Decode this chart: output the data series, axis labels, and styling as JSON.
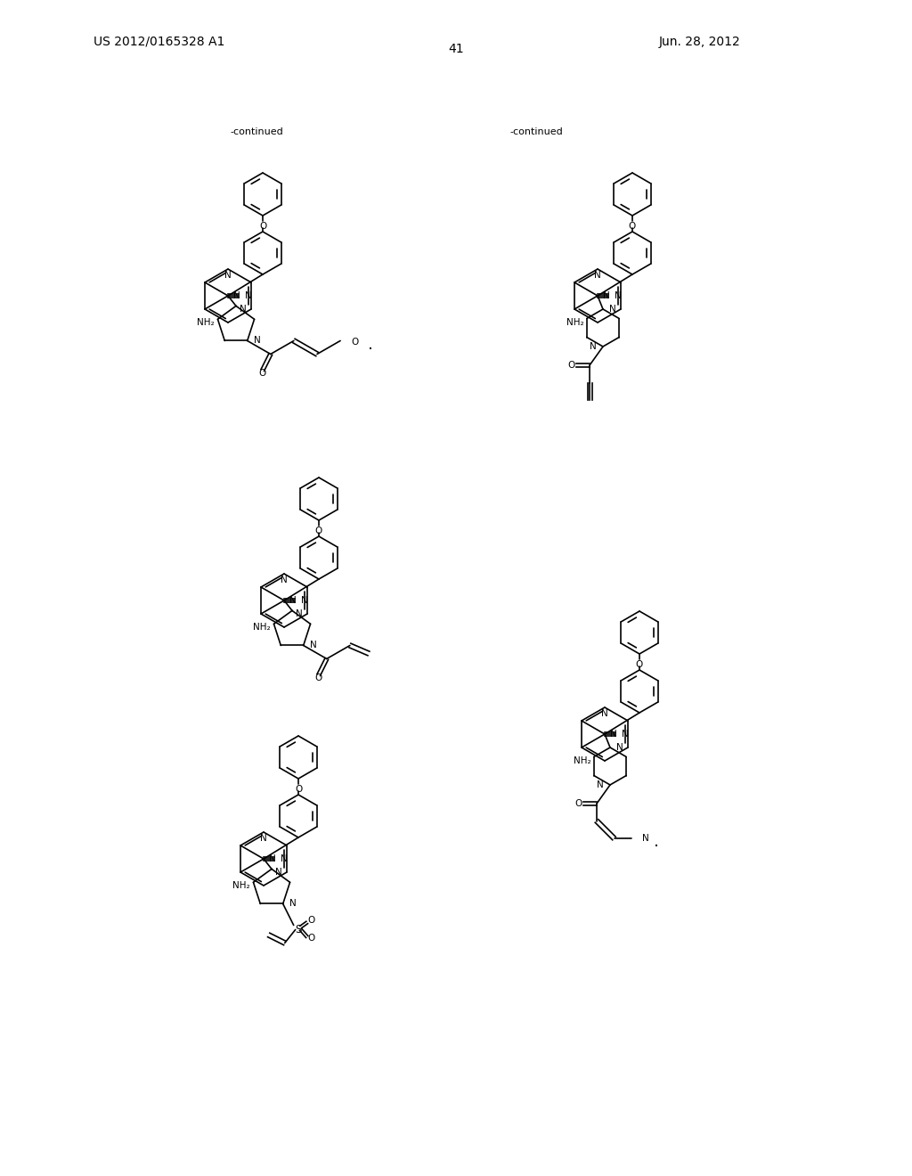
{
  "page_number": "41",
  "patent_number": "US 2012/0165328 A1",
  "date": "Jun. 28, 2012",
  "continued_label": "-continued",
  "background_color": "#ffffff",
  "text_color": "#000000",
  "line_color": "#000000",
  "line_width": 1.2,
  "font_size_header": 10,
  "font_size_label": 8,
  "font_size_atom": 7.5
}
